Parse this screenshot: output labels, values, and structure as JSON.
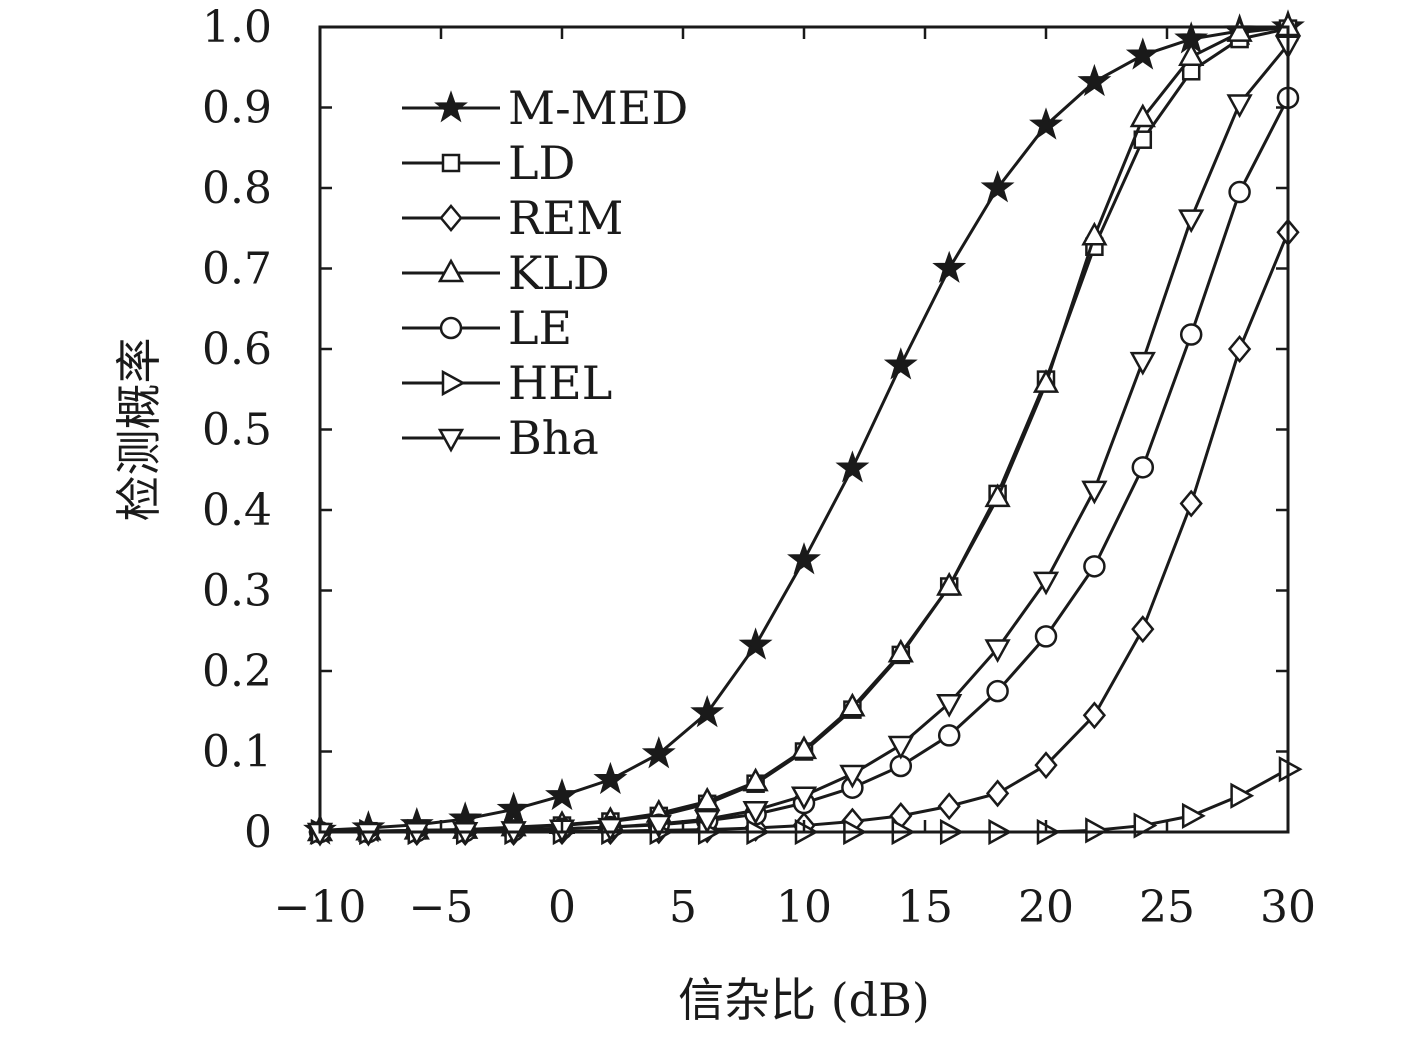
{
  "chart_data": {
    "type": "line",
    "xlabel": "信杂比 (dB)",
    "ylabel": "检测概率",
    "xlim": [
      -10,
      30
    ],
    "ylim": [
      0,
      1
    ],
    "xticks": [
      -10,
      -5,
      0,
      5,
      10,
      15,
      20,
      25,
      30
    ],
    "xtick_labels": [
      "−10",
      "−5",
      "0",
      "5",
      "10",
      "15",
      "20",
      "25",
      "30"
    ],
    "yticks": [
      0,
      0.1,
      0.2,
      0.3,
      0.4,
      0.5,
      0.6,
      0.7,
      0.8,
      0.9,
      1.0
    ],
    "ytick_labels": [
      "0",
      "0.1",
      "0.2",
      "0.3",
      "0.4",
      "0.5",
      "0.6",
      "0.7",
      "0.8",
      "0.9",
      "1.0"
    ],
    "grid": false,
    "legend_position": "top-left",
    "line_color": "#1a1a1a",
    "x": [
      -10,
      -8,
      -6,
      -4,
      -2,
      0,
      2,
      4,
      6,
      8,
      10,
      12,
      14,
      16,
      18,
      20,
      22,
      24,
      26,
      28,
      30
    ],
    "series": [
      {
        "name": "M-MED",
        "marker": "star",
        "values": [
          0.002,
          0.005,
          0.009,
          0.016,
          0.028,
          0.045,
          0.065,
          0.097,
          0.148,
          0.232,
          0.338,
          0.452,
          0.58,
          0.7,
          0.8,
          0.878,
          0.932,
          0.965,
          0.985,
          0.995,
          1.0
        ]
      },
      {
        "name": "LD",
        "marker": "square",
        "values": [
          0.0,
          0.001,
          0.002,
          0.003,
          0.005,
          0.008,
          0.013,
          0.02,
          0.035,
          0.06,
          0.1,
          0.152,
          0.22,
          0.305,
          0.42,
          0.562,
          0.727,
          0.86,
          0.945,
          0.985,
          0.998
        ]
      },
      {
        "name": "REM",
        "marker": "diamond",
        "values": [
          0.0,
          0.0,
          0.0,
          0.0,
          0.0,
          0.001,
          0.001,
          0.002,
          0.003,
          0.005,
          0.008,
          0.013,
          0.02,
          0.032,
          0.048,
          0.083,
          0.145,
          0.252,
          0.408,
          0.6,
          0.745
        ]
      },
      {
        "name": "KLD",
        "marker": "triangle-up",
        "values": [
          0.0,
          0.001,
          0.002,
          0.003,
          0.006,
          0.009,
          0.014,
          0.023,
          0.038,
          0.062,
          0.102,
          0.155,
          0.222,
          0.305,
          0.415,
          0.557,
          0.74,
          0.887,
          0.963,
          0.993,
          1.0
        ]
      },
      {
        "name": "LE",
        "marker": "circle",
        "values": [
          0.0,
          0.0,
          0.001,
          0.001,
          0.002,
          0.004,
          0.006,
          0.009,
          0.014,
          0.022,
          0.036,
          0.055,
          0.082,
          0.12,
          0.175,
          0.243,
          0.33,
          0.453,
          0.618,
          0.795,
          0.912
        ]
      },
      {
        "name": "HEL",
        "marker": "triangle-right",
        "values": [
          0.0,
          0.0,
          0.0,
          0.0,
          0.0,
          0.0,
          0.0,
          0.0,
          0.0,
          0.0,
          0.0,
          0.0,
          0.0,
          0.0,
          0.0,
          0.0,
          0.002,
          0.008,
          0.02,
          0.045,
          0.078
        ]
      },
      {
        "name": "Bha",
        "marker": "triangle-down",
        "values": [
          0.0,
          0.0,
          0.001,
          0.001,
          0.002,
          0.004,
          0.006,
          0.01,
          0.016,
          0.027,
          0.045,
          0.072,
          0.108,
          0.16,
          0.228,
          0.312,
          0.425,
          0.585,
          0.762,
          0.905,
          0.978
        ]
      }
    ]
  }
}
